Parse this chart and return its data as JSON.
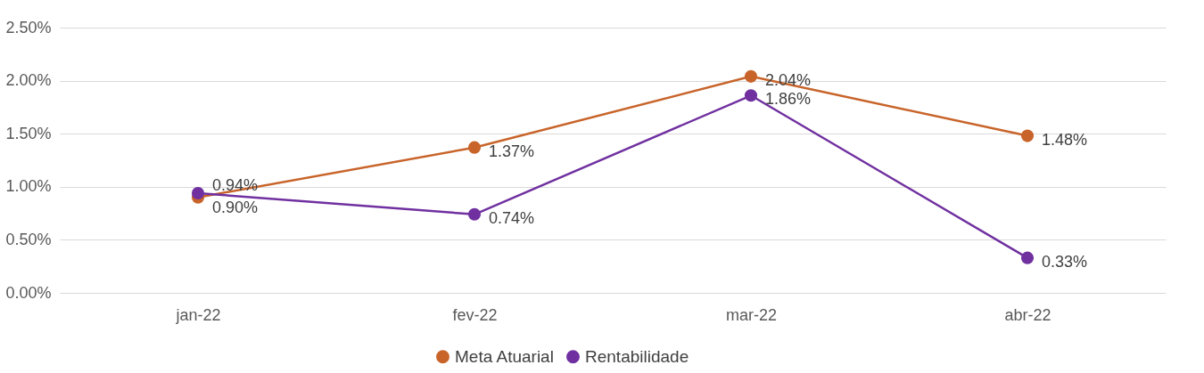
{
  "chart_data": {
    "type": "line",
    "categories": [
      "jan-22",
      "fev-22",
      "mar-22",
      "abr-22"
    ],
    "series": [
      {
        "name": "Meta Atuarial",
        "color": "#c8642a",
        "values": [
          0.9,
          1.37,
          2.04,
          1.48
        ],
        "value_labels": [
          "0.90%",
          "1.37%",
          "2.04%",
          "1.48%"
        ]
      },
      {
        "name": "Rentabilidade",
        "color": "#7030a0",
        "values": [
          0.94,
          0.74,
          1.86,
          0.33
        ],
        "value_labels": [
          "0.94%",
          "0.74%",
          "1.86%",
          "0.33%"
        ]
      }
    ],
    "ylim": [
      0,
      2.5
    ],
    "yticks": [
      {
        "value": 0,
        "label": "0.00%"
      },
      {
        "value": 0.5,
        "label": "0.50%"
      },
      {
        "value": 1,
        "label": "1.00%"
      },
      {
        "value": 1.5,
        "label": "1.50%"
      },
      {
        "value": 2,
        "label": "2.00%"
      },
      {
        "value": 2.5,
        "label": "2.50%"
      }
    ],
    "grid": "y",
    "legend": "bottom",
    "marker": "circle",
    "line_style": "solid"
  }
}
